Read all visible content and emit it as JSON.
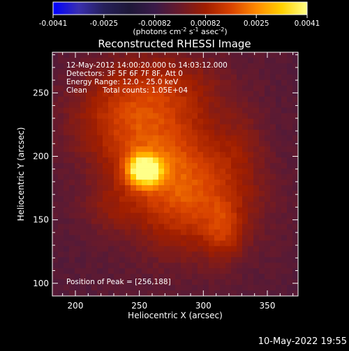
{
  "chart_data": {
    "type": "heatmap",
    "title": "Reconstructed RHESSI Image",
    "xlabel": "Heliocentric X (arcsec)",
    "ylabel": "Heliocentric Y (arcsec)",
    "xlim": [
      182,
      374
    ],
    "ylim": [
      90,
      282
    ],
    "x_ticks": [
      200,
      250,
      300,
      350
    ],
    "y_ticks": [
      100,
      150,
      200,
      250
    ],
    "peak_position": [
      256,
      188
    ],
    "colorbar": {
      "vmin": -0.0041,
      "vmax": 0.0041,
      "ticks": [
        "-0.0041",
        "-0.0025",
        "-0.00082",
        "0.00082",
        "0.0025",
        "0.0041"
      ],
      "unit_parts": [
        "(photons cm",
        "-2",
        " s",
        "-1",
        " asec",
        "-2",
        ")"
      ]
    },
    "colormap": [
      "#0000ff",
      "#3a2fb0",
      "#26205a",
      "#1e1838",
      "#3a1a48",
      "#6a1a2a",
      "#a01e00",
      "#d84200",
      "#ff8a00",
      "#ffd000",
      "#ffff88"
    ],
    "sources": [
      {
        "x": 254,
        "y": 189,
        "sx": 9,
        "sy": 8,
        "amp": 1.0
      },
      {
        "x": 268,
        "y": 200,
        "sx": 30,
        "sy": 40,
        "amp": 0.38
      },
      {
        "x": 300,
        "y": 165,
        "sx": 32,
        "sy": 30,
        "amp": 0.34
      },
      {
        "x": 316,
        "y": 140,
        "sx": 10,
        "sy": 16,
        "amp": 0.22
      },
      {
        "x": 232,
        "y": 228,
        "sx": 28,
        "sy": 26,
        "amp": 0.26
      },
      {
        "x": 270,
        "y": 255,
        "sx": 36,
        "sy": 20,
        "amp": 0.18
      },
      {
        "x": 330,
        "y": 210,
        "sx": 14,
        "sy": 20,
        "amp": 0.12
      },
      {
        "x": 225,
        "y": 160,
        "sx": 16,
        "sy": 14,
        "amp": 0.12
      }
    ],
    "background_level": -0.08
  },
  "annotations": {
    "time_range": "12-May-2012 14:00:20.000 to 14:03:12.000",
    "detectors": "Detectors: 3F 5F 6F 7F 8F, Att 0",
    "energy_range": "Energy Range: 12.0 - 25.0 keV",
    "method": "Clean",
    "total_counts": "Total counts: 1.05E+04",
    "peak": "Position of Peak = [256,188]"
  },
  "footer": {
    "timestamp": "10-May-2022 19:55"
  }
}
